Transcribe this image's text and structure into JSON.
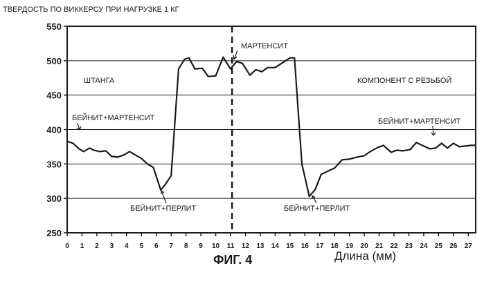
{
  "chart_data": {
    "type": "line",
    "title": "ТВЕРДОСТЬ ПО ВИККЕРСУ ПРИ НАГРУЗКЕ 1 КГ",
    "figure_label": "ФИГ. 4",
    "xlabel": "Длина (мм)",
    "ylabel": "",
    "xlim": [
      0,
      27.5
    ],
    "ylim": [
      250,
      550
    ],
    "grid": "horizontal",
    "y_ticks": [
      250,
      300,
      350,
      400,
      450,
      500,
      550
    ],
    "x_ticks": [
      0,
      1,
      2,
      3,
      4,
      5,
      6,
      7,
      8,
      9,
      10,
      11,
      12,
      13,
      14,
      15,
      16,
      17,
      18,
      19,
      20,
      21,
      22,
      23,
      24,
      25,
      26,
      27
    ],
    "x_tick_labels": [
      "0",
      "1",
      "2",
      "3",
      "4",
      "5",
      "6",
      "7",
      "8",
      "9",
      "10",
      "11",
      "12",
      "13",
      "14",
      "15",
      "16",
      "17",
      "18",
      "19",
      "20",
      "21",
      "22",
      "23",
      "24",
      "25",
      "26",
      "27"
    ],
    "divider_x": 11.1,
    "series": [
      {
        "name": "",
        "points": [
          [
            0,
            383
          ],
          [
            0.4,
            380
          ],
          [
            0.8,
            372
          ],
          [
            1.1,
            368
          ],
          [
            1.5,
            373
          ],
          [
            1.8,
            370
          ],
          [
            2.2,
            368
          ],
          [
            2.6,
            369
          ],
          [
            3.0,
            361
          ],
          [
            3.4,
            360
          ],
          [
            3.8,
            363
          ],
          [
            4.2,
            368
          ],
          [
            4.6,
            363
          ],
          [
            5.0,
            358
          ],
          [
            5.4,
            350
          ],
          [
            5.8,
            345
          ],
          [
            6.3,
            312
          ],
          [
            6.6,
            320
          ],
          [
            7.0,
            333
          ],
          [
            7.5,
            488
          ],
          [
            7.9,
            502
          ],
          [
            8.2,
            504
          ],
          [
            8.6,
            488
          ],
          [
            9.1,
            489
          ],
          [
            9.5,
            477
          ],
          [
            10.0,
            478
          ],
          [
            10.5,
            505
          ],
          [
            11.0,
            488
          ],
          [
            11.4,
            499
          ],
          [
            11.8,
            496
          ],
          [
            12.3,
            479
          ],
          [
            12.7,
            487
          ],
          [
            13.1,
            484
          ],
          [
            13.5,
            490
          ],
          [
            14.0,
            490
          ],
          [
            14.5,
            497
          ],
          [
            15.0,
            504
          ],
          [
            15.3,
            504
          ],
          [
            15.8,
            350
          ],
          [
            16.3,
            303
          ],
          [
            16.7,
            313
          ],
          [
            17.1,
            335
          ],
          [
            17.6,
            340
          ],
          [
            18.0,
            344
          ],
          [
            18.5,
            356
          ],
          [
            19.0,
            357
          ],
          [
            19.5,
            360
          ],
          [
            20.0,
            362
          ],
          [
            20.4,
            368
          ],
          [
            20.9,
            374
          ],
          [
            21.3,
            377
          ],
          [
            21.8,
            367
          ],
          [
            22.2,
            370
          ],
          [
            22.6,
            369
          ],
          [
            23.1,
            371
          ],
          [
            23.5,
            381
          ],
          [
            24.0,
            376
          ],
          [
            24.4,
            372
          ],
          [
            24.8,
            373
          ],
          [
            25.2,
            380
          ],
          [
            25.6,
            373
          ],
          [
            26.0,
            380
          ],
          [
            26.4,
            375
          ],
          [
            26.8,
            376
          ],
          [
            27.2,
            377
          ],
          [
            27.5,
            377
          ]
        ]
      }
    ],
    "annotations": [
      {
        "id": "shtanga",
        "text": "ШТАНГА"
      },
      {
        "id": "component",
        "text": "КОМПОНЕНТ С РЕЗЬБОЙ"
      },
      {
        "id": "martensite",
        "text": "МАРТЕНСИТ"
      },
      {
        "id": "bm_left",
        "text": "БЕЙНИТ+МАРТЕНСИТ"
      },
      {
        "id": "bm_right",
        "text": "БЕЙНИТ+МАРТЕНСИТ"
      },
      {
        "id": "bp_left",
        "text": "БЕЙНИТ+ПЕРЛИТ"
      },
      {
        "id": "bp_right",
        "text": "БЕЙНИТ+ПЕРЛИТ"
      }
    ]
  }
}
